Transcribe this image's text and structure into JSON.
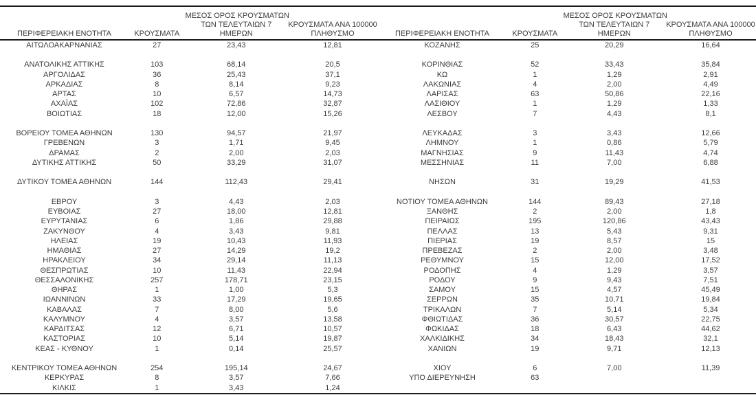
{
  "meta": {
    "text_color": "#3b3b3b",
    "line_color": "#1c1c1c",
    "background_color": "#ffffff"
  },
  "columns": [
    {
      "id": "region",
      "lines": [
        "ΠΕΡΙΦΕΡΕΙΑΚΗ ΕΝΟΤΗΤΑ"
      ]
    },
    {
      "id": "cases",
      "lines": [
        "ΚΡΟΥΣΜΑΤΑ"
      ]
    },
    {
      "id": "avg7",
      "lines": [
        "ΜΕΣΟΣ ΟΡΟΣ ΚΡΟΥΣΜΑΤΩΝ",
        "ΤΩΝ ΤΕΛΕΥΤΑΙΩΝ 7",
        "ΗΜΕΡΩΝ"
      ]
    },
    {
      "id": "per100k",
      "lines": [
        "ΚΡΟΥΣΜΑΤΑ ΑΝΑ 100000",
        "ΠΛΗΘΥΣΜΟ"
      ]
    }
  ],
  "tables": [
    {
      "name": "left",
      "rows": [
        [
          "ΑΙΤΩΛΟΑΚΑΡΝΑΝΙΑΣ",
          "27",
          "23,43",
          "12,81"
        ],
        null,
        [
          "ΑΝΑΤΟΛΙΚΗΣ ΑΤΤΙΚΗΣ",
          "103",
          "68,14",
          "20,5"
        ],
        [
          "ΑΡΓΟΛΙΔΑΣ",
          "36",
          "25,43",
          "37,1"
        ],
        [
          "ΑΡΚΑΔΙΑΣ",
          "8",
          "8,14",
          "9,23"
        ],
        [
          "ΑΡΤΑΣ",
          "10",
          "6,57",
          "14,73"
        ],
        [
          "ΑΧΑΪΑΣ",
          "102",
          "72,86",
          "32,87"
        ],
        [
          "ΒΟΙΩΤΙΑΣ",
          "18",
          "12,00",
          "15,26"
        ],
        null,
        [
          "ΒΟΡΕΙΟΥ ΤΟΜΕΑ ΑΘΗΝΩΝ",
          "130",
          "94,57",
          "21,97"
        ],
        [
          "ΓΡΕΒΕΝΩΝ",
          "3",
          "1,71",
          "9,45"
        ],
        [
          "ΔΡΑΜΑΣ",
          "2",
          "2,00",
          "2,03"
        ],
        [
          "ΔΥΤΙΚΗΣ ΑΤΤΙΚΗΣ",
          "50",
          "33,29",
          "31,07"
        ],
        null,
        [
          "ΔΥΤΙΚΟΥ ΤΟΜΕΑ ΑΘΗΝΩΝ",
          "144",
          "112,43",
          "29,41"
        ],
        null,
        [
          "ΕΒΡΟΥ",
          "3",
          "4,43",
          "2,03"
        ],
        [
          "ΕΥΒΟΙΑΣ",
          "27",
          "18,00",
          "12,81"
        ],
        [
          "ΕΥΡΥΤΑΝΙΑΣ",
          "6",
          "1,86",
          "29,88"
        ],
        [
          "ΖΑΚΥΝΘΟΥ",
          "4",
          "3,43",
          "9,81"
        ],
        [
          "ΗΛΕΙΑΣ",
          "19",
          "10,43",
          "11,93"
        ],
        [
          "ΗΜΑΘΙΑΣ",
          "27",
          "14,29",
          "19,2"
        ],
        [
          "ΗΡΑΚΛΕΙΟΥ",
          "34",
          "29,14",
          "11,13"
        ],
        [
          "ΘΕΣΠΡΩΤΙΑΣ",
          "10",
          "11,43",
          "22,94"
        ],
        [
          "ΘΕΣΣΑΛΟΝΙΚΗΣ",
          "257",
          "178,71",
          "23,15"
        ],
        [
          "ΘΗΡΑΣ",
          "1",
          "1,00",
          "5,3"
        ],
        [
          "ΙΩΑΝΝΙΝΩΝ",
          "33",
          "17,29",
          "19,65"
        ],
        [
          "ΚΑΒΑΛΑΣ",
          "7",
          "8,00",
          "5,6"
        ],
        [
          "ΚΑΛΥΜΝΟΥ",
          "4",
          "3,57",
          "13,58"
        ],
        [
          "ΚΑΡΔΙΤΣΑΣ",
          "12",
          "6,71",
          "10,57"
        ],
        [
          "ΚΑΣΤΟΡΙΑΣ",
          "10",
          "5,14",
          "19,87"
        ],
        [
          "ΚΕΑΣ - ΚΥΘΝΟΥ",
          "1",
          "0,14",
          "25,57"
        ],
        null,
        [
          "ΚΕΝΤΡΙΚΟΥ ΤΟΜΕΑ ΑΘΗΝΩΝ",
          "254",
          "195,14",
          "24,67"
        ],
        [
          "ΚΕΡΚΥΡΑΣ",
          "8",
          "3,57",
          "7,66"
        ],
        [
          "ΚΙΛΚΙΣ",
          "1",
          "3,43",
          "1,24"
        ]
      ]
    },
    {
      "name": "right",
      "rows": [
        [
          "ΚΟΖΑΝΗΣ",
          "25",
          "20,29",
          "16,64"
        ],
        null,
        [
          "ΚΟΡΙΝΘΙΑΣ",
          "52",
          "33,43",
          "35,84"
        ],
        [
          "ΚΩ",
          "1",
          "1,29",
          "2,91"
        ],
        [
          "ΛΑΚΩΝΙΑΣ",
          "4",
          "2,00",
          "4,49"
        ],
        [
          "ΛΑΡΙΣΑΣ",
          "63",
          "50,86",
          "22,16"
        ],
        [
          "ΛΑΣΙΘΙΟΥ",
          "1",
          "1,29",
          "1,33"
        ],
        [
          "ΛΕΣΒΟΥ",
          "7",
          "4,43",
          "8,1"
        ],
        null,
        [
          "ΛΕΥΚΑΔΑΣ",
          "3",
          "3,43",
          "12,66"
        ],
        [
          "ΛΗΜΝΟΥ",
          "1",
          "0,86",
          "5,79"
        ],
        [
          "ΜΑΓΝΗΣΙΑΣ",
          "9",
          "11,43",
          "4,74"
        ],
        [
          "ΜΕΣΣΗΝΙΑΣ",
          "11",
          "7,00",
          "6,88"
        ],
        null,
        [
          "ΝΗΣΩΝ",
          "31",
          "19,29",
          "41,53"
        ],
        null,
        [
          "ΝΟΤΙΟΥ ΤΟΜΕΑ ΑΘΗΝΩΝ",
          "144",
          "89,43",
          "27,18"
        ],
        [
          "ΞΑΝΘΗΣ",
          "2",
          "2,00",
          "1,8"
        ],
        [
          "ΠΕΙΡΑΙΩΣ",
          "195",
          "120,86",
          "43,43"
        ],
        [
          "ΠΕΛΛΑΣ",
          "13",
          "5,43",
          "9,31"
        ],
        [
          "ΠΙΕΡΙΑΣ",
          "19",
          "8,57",
          "15"
        ],
        [
          "ΠΡΕΒΕΖΑΣ",
          "2",
          "2,00",
          "3,48"
        ],
        [
          "ΡΕΘΥΜΝΟΥ",
          "15",
          "12,00",
          "17,52"
        ],
        [
          "ΡΟΔΟΠΗΣ",
          "4",
          "1,29",
          "3,57"
        ],
        [
          "ΡΟΔΟΥ",
          "9",
          "9,43",
          "7,51"
        ],
        [
          "ΣΑΜΟΥ",
          "15",
          "4,57",
          "45,49"
        ],
        [
          "ΣΕΡΡΩΝ",
          "35",
          "10,71",
          "19,84"
        ],
        [
          "ΤΡΙΚΑΛΩΝ",
          "7",
          "5,14",
          "5,34"
        ],
        [
          "ΦΘΙΩΤΙΔΑΣ",
          "36",
          "30,57",
          "22,75"
        ],
        [
          "ΦΩΚΙΔΑΣ",
          "18",
          "6,43",
          "44,62"
        ],
        [
          "ΧΑΛΚΙΔΙΚΗΣ",
          "34",
          "18,43",
          "32,1"
        ],
        [
          "ΧΑΝΙΩΝ",
          "19",
          "9,71",
          "12,13"
        ],
        null,
        [
          "ΧΙΟΥ",
          "6",
          "7,00",
          "11,39"
        ],
        [
          "ΥΠΟ ΔΙΕΡΕΥΝΗΣΗ",
          "63",
          "",
          ""
        ],
        null
      ]
    }
  ]
}
